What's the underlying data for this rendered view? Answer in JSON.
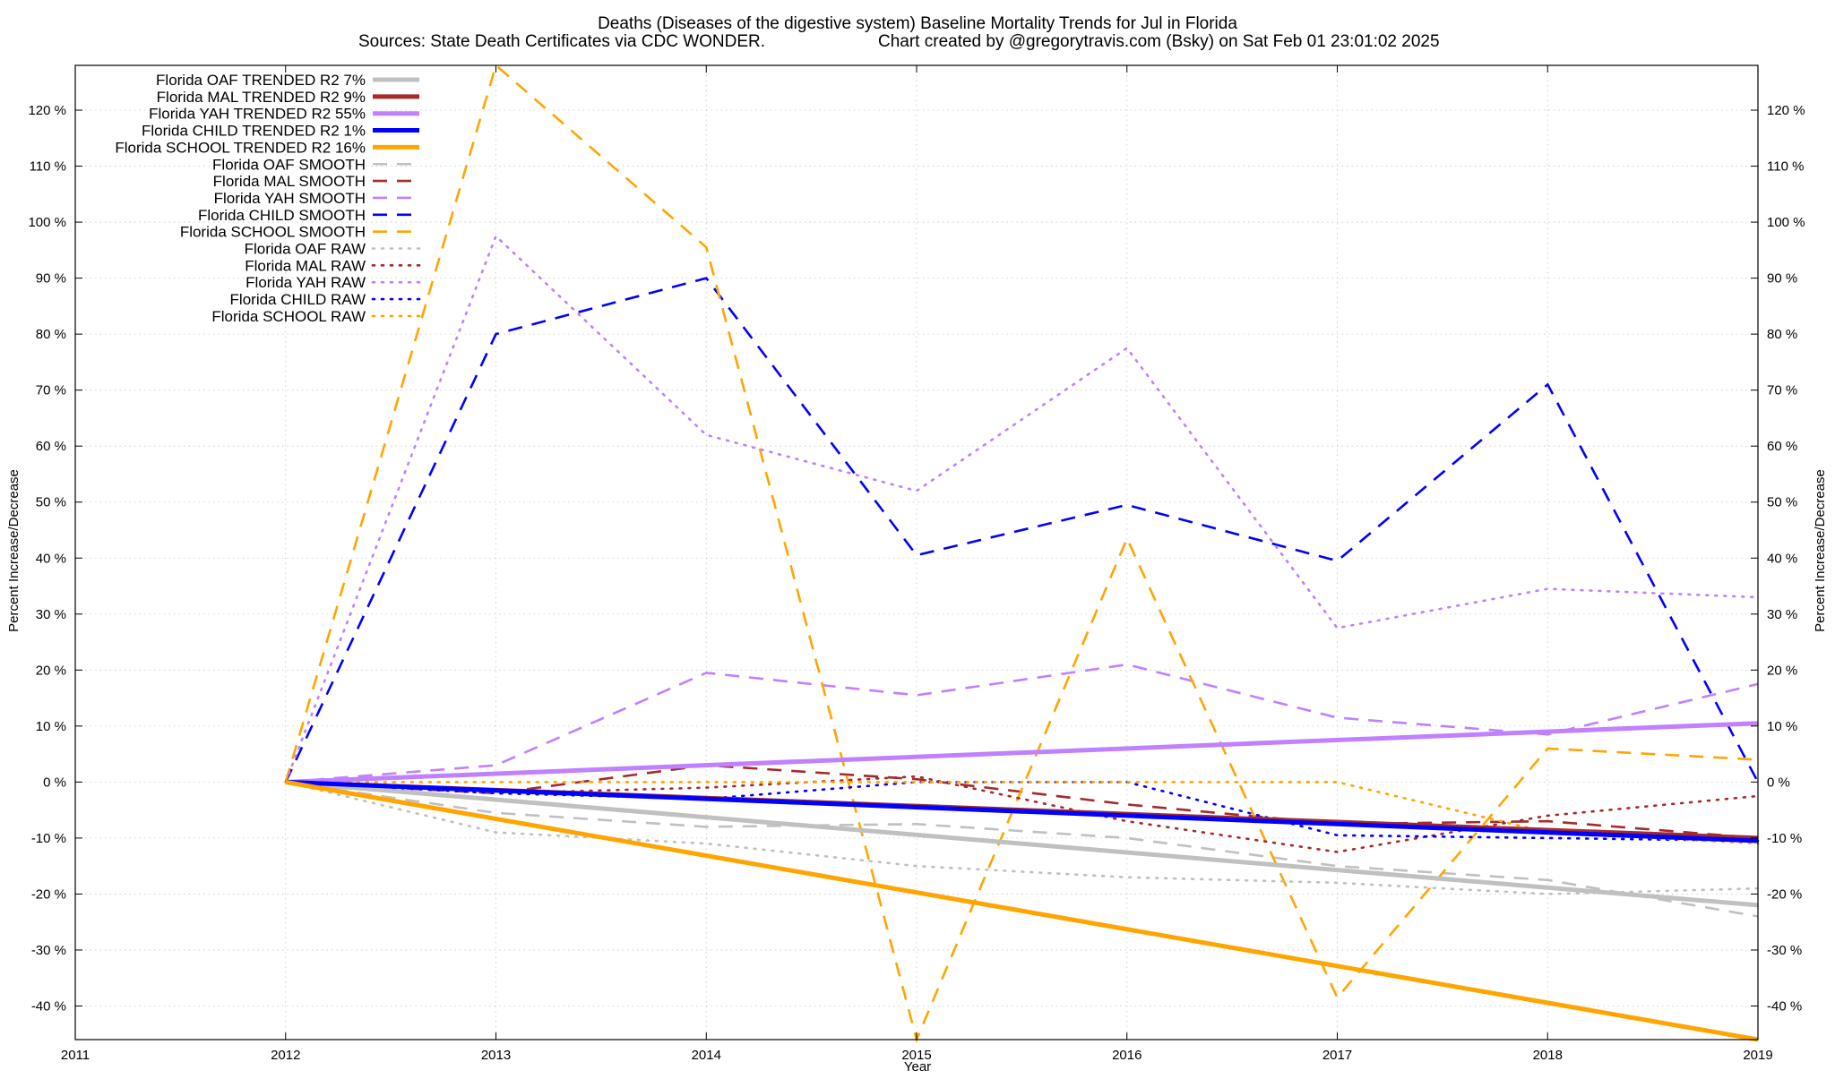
{
  "chart_data": {
    "type": "line",
    "title": "Deaths (Diseases of the digestive system)  Baseline Mortality Trends for Jul in Florida",
    "subtitle_left": "Sources: State Death Certificates via CDC WONDER.",
    "subtitle_right": "Chart created by @gregorytravis.com (Bsky) on Sat Feb 01 23:01:02 2025",
    "xlabel": "Year",
    "ylabel": "Percent Increase/Decrease",
    "ylabel_right": "Percent Increase/Decrease",
    "xlim": [
      2011,
      2019
    ],
    "ylim": [
      -46,
      128
    ],
    "x_ticks": [
      "2011",
      "2012",
      "2013",
      "2014",
      "2015",
      "2016",
      "2017",
      "2018",
      "2019"
    ],
    "y_ticks": [
      120,
      110,
      100,
      90,
      80,
      70,
      60,
      50,
      40,
      30,
      20,
      10,
      0,
      -10,
      -20,
      -30,
      -40
    ],
    "y_tick_labels": [
      "120 %",
      "110 %",
      "100 %",
      "90 %",
      "80 %",
      "70 %",
      "60 %",
      "50 %",
      "40 %",
      "30 %",
      "20 %",
      "10 %",
      "0 %",
      "-10 %",
      "-20 %",
      "-30 %",
      "-40 %"
    ],
    "grid": true,
    "legend_position": "top-left",
    "series": [
      {
        "name": "Florida OAF TRENDED R2   7%",
        "style": "solid",
        "color": "#c0c0c0",
        "x": [
          2012,
          2019
        ],
        "y": [
          0,
          -22
        ]
      },
      {
        "name": "Florida MAL TRENDED R2   9%",
        "style": "solid",
        "color": "#a52a2a",
        "x": [
          2012,
          2019
        ],
        "y": [
          0,
          -10
        ]
      },
      {
        "name": "Florida YAH TRENDED R2  55%",
        "style": "solid",
        "color": "#c080ff",
        "x": [
          2012,
          2019
        ],
        "y": [
          0,
          10.5
        ]
      },
      {
        "name": "Florida CHILD TRENDED R2   1%",
        "style": "solid",
        "color": "#0000ff",
        "x": [
          2012,
          2019
        ],
        "y": [
          0,
          -10.5
        ]
      },
      {
        "name": "Florida SCHOOL TRENDED R2  16%",
        "style": "solid",
        "color": "#ffa500",
        "x": [
          2012,
          2019
        ],
        "y": [
          0,
          -46
        ]
      },
      {
        "name": "Florida OAF SMOOTH",
        "style": "dashed",
        "color": "#c0c0c0",
        "x": [
          2012,
          2013,
          2014,
          2015,
          2016,
          2017,
          2018,
          2019
        ],
        "y": [
          0,
          -5.5,
          -8,
          -7.5,
          -10,
          -15,
          -17.5,
          -24
        ]
      },
      {
        "name": "Florida MAL SMOOTH",
        "style": "dashed",
        "color": "#a52a2a",
        "x": [
          2012,
          2013,
          2014,
          2015,
          2016,
          2017,
          2018,
          2019
        ],
        "y": [
          0,
          -2,
          3,
          0.5,
          -4,
          -7.5,
          -7,
          -10
        ]
      },
      {
        "name": "Florida YAH SMOOTH",
        "style": "dashed",
        "color": "#c080ff",
        "x": [
          2012,
          2013,
          2014,
          2015,
          2016,
          2017,
          2018,
          2019
        ],
        "y": [
          0,
          3,
          19.5,
          15.5,
          21,
          11.5,
          8.5,
          17.5
        ]
      },
      {
        "name": "Florida CHILD SMOOTH",
        "style": "dashed",
        "color": "#0000ff",
        "x": [
          2012,
          2013,
          2014,
          2015,
          2016,
          2017,
          2018,
          2019
        ],
        "y": [
          0,
          80,
          90,
          40.5,
          49.5,
          39.5,
          71,
          0
        ]
      },
      {
        "name": "Florida SCHOOL SMOOTH",
        "style": "dashed",
        "color": "#ffa500",
        "x": [
          2012,
          2013,
          2014,
          2015,
          2016,
          2017,
          2018,
          2019
        ],
        "y": [
          0,
          128,
          95.5,
          -46,
          43.5,
          -38.5,
          6,
          4
        ]
      },
      {
        "name": "Florida OAF RAW",
        "style": "dotted",
        "color": "#c0c0c0",
        "x": [
          2012,
          2013,
          2014,
          2015,
          2016,
          2017,
          2018,
          2019
        ],
        "y": [
          0,
          -9,
          -11,
          -15,
          -17,
          -18,
          -20,
          -19
        ]
      },
      {
        "name": "Florida MAL RAW",
        "style": "dotted",
        "color": "#a52a2a",
        "x": [
          2012,
          2013,
          2014,
          2015,
          2016,
          2017,
          2018,
          2019
        ],
        "y": [
          0,
          -2,
          -1,
          1,
          -7,
          -12.5,
          -6,
          -2.5
        ]
      },
      {
        "name": "Florida YAH RAW",
        "style": "dotted",
        "color": "#c080ff",
        "x": [
          2012,
          2013,
          2014,
          2015,
          2016,
          2017,
          2018,
          2019
        ],
        "y": [
          0,
          97.5,
          62,
          52,
          77.5,
          27.5,
          34.5,
          33
        ]
      },
      {
        "name": "Florida CHILD RAW",
        "style": "dotted",
        "color": "#0000ff",
        "x": [
          2012,
          2013,
          2014,
          2015,
          2016,
          2017,
          2018,
          2019
        ],
        "y": [
          0,
          -2,
          -3,
          0,
          0,
          -9.5,
          -10,
          -10.5
        ]
      },
      {
        "name": "Florida SCHOOL RAW",
        "style": "dotted",
        "color": "#ffa500",
        "x": [
          2012,
          2013,
          2014,
          2015,
          2016,
          2017,
          2018,
          2019
        ],
        "y": [
          0,
          0,
          0,
          0,
          0,
          0,
          -9,
          -11
        ]
      }
    ]
  }
}
